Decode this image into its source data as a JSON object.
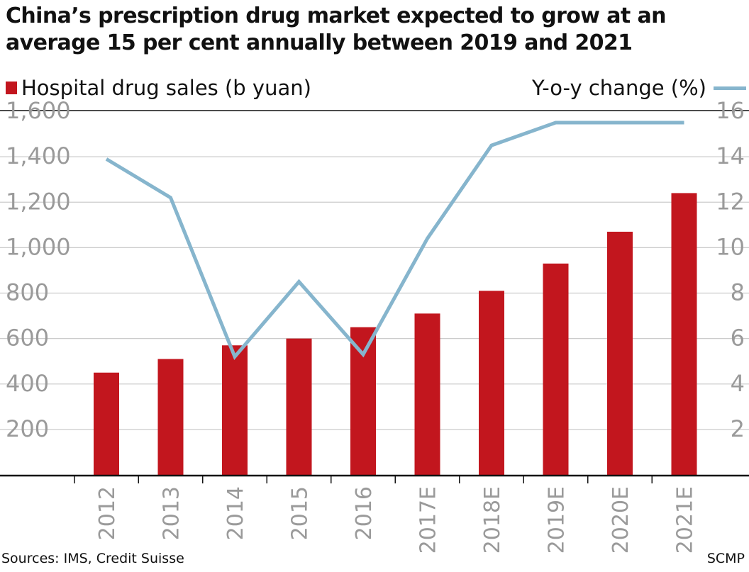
{
  "title": "China’s prescription drug market expected to grow at an average 15 per cent annually between 2019 and 2021",
  "source": "Sources: IMS, Credit Suisse",
  "credit": "SCMP",
  "colors": {
    "bar": "#c2161e",
    "line": "#86b5cd",
    "tick": "#9a9a9a",
    "grid": "#cccccc",
    "axis": "#111111"
  },
  "chart_data": {
    "type": "bar+line",
    "categories": [
      "2012",
      "2013",
      "2014",
      "2015",
      "2016",
      "2017E",
      "2018E",
      "2019E",
      "2020E",
      "2021E"
    ],
    "series": [
      {
        "name": "Hospital drug sales (b yuan)",
        "type": "bar",
        "axis": "left",
        "values": [
          450,
          510,
          570,
          600,
          650,
          710,
          810,
          930,
          1070,
          1240
        ]
      },
      {
        "name": "Y-o-y change (%)",
        "type": "line",
        "axis": "right",
        "values": [
          13.9,
          12.2,
          5.2,
          8.5,
          5.3,
          10.4,
          14.5,
          15.5,
          15.5,
          15.5
        ]
      }
    ],
    "left_axis": {
      "ylim": [
        0,
        1600
      ],
      "ticks": [
        200,
        400,
        600,
        800,
        1000,
        1200,
        1400,
        1600
      ],
      "tick_labels": [
        "200",
        "400",
        "600",
        "800",
        "1,000",
        "1,200",
        "1,400",
        "1,600"
      ]
    },
    "right_axis": {
      "ylim": [
        0,
        16
      ],
      "ticks": [
        2,
        4,
        6,
        8,
        10,
        12,
        14,
        16
      ],
      "tick_labels": [
        "2",
        "4",
        "6",
        "8",
        "10",
        "12",
        "14",
        "16"
      ]
    },
    "grid": true,
    "legend_placement": "top"
  }
}
